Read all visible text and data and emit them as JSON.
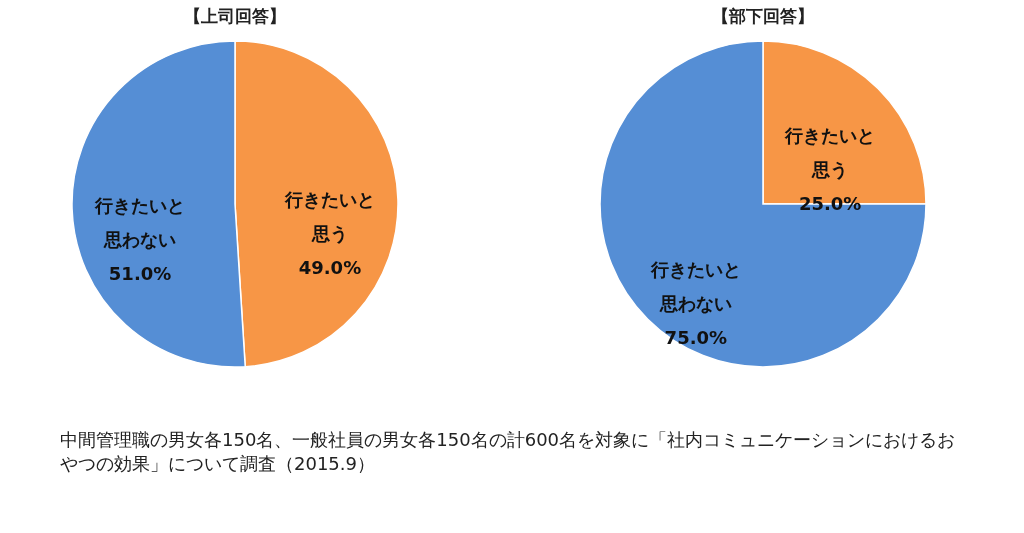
{
  "chart_data": [
    {
      "type": "pie",
      "title": "【上司回答】",
      "categories": [
        "行きたいと思う",
        "行きたいと思わない"
      ],
      "values": [
        49,
        51
      ],
      "value_labels": [
        "49.0%",
        "51.0%"
      ],
      "colors": [
        "#f79646",
        "#558ed5"
      ],
      "legend": false
    },
    {
      "type": "pie",
      "title": "【部下回答】",
      "categories": [
        "行きたいと思う",
        "行きたいと思わない"
      ],
      "values": [
        25,
        75
      ],
      "value_labels": [
        "25.0%",
        "75.0%"
      ],
      "colors": [
        "#f79646",
        "#558ed5"
      ],
      "legend": false,
      "annotations": [
        "中間管理職の男女各150名、一般社員の男女各150名の計600名を対象に「社内コミュニケーションにおけるおやつの効果」について調査（2015.9）"
      ]
    }
  ]
}
